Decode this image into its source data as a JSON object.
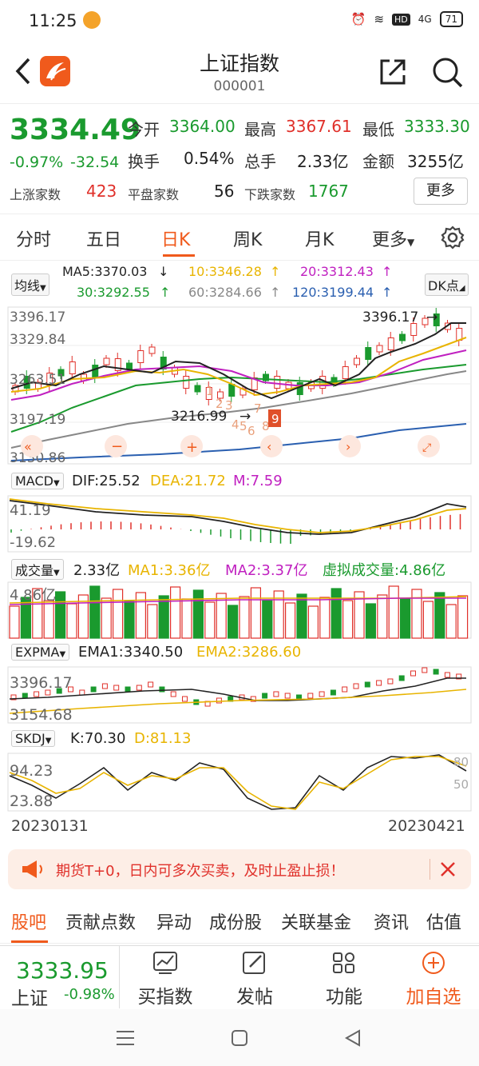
{
  "status": {
    "time": "11:25",
    "battery": "71",
    "net": "4G"
  },
  "header": {
    "title": "上证指数",
    "code": "000001"
  },
  "quote": {
    "price": "3334.49",
    "chg_pct": "-0.97%",
    "chg_amt": "-32.54",
    "open_label": "今开",
    "open": "3364.00",
    "high_label": "最高",
    "high": "3367.61",
    "low_label": "最低",
    "low": "3333.30",
    "turnover_label": "换手",
    "turnover": "0.54%",
    "vol_label": "总手",
    "vol": "2.33亿",
    "amt_label": "金额",
    "amt": "3255亿",
    "up_label": "上涨家数",
    "up": "423",
    "flat_label": "平盘家数",
    "flat": "56",
    "down_label": "下跌家数",
    "down": "1767",
    "more": "更多"
  },
  "tabs": [
    "分时",
    "五日",
    "日K",
    "周K",
    "月K",
    "更多"
  ],
  "ma": {
    "selector": "均线",
    "ma5": "MA5:3370.03",
    "ma10": "10:3346.28",
    "ma20": "20:3312.43",
    "ma30": "30:3292.55",
    "ma60": "60:3284.66",
    "ma120": "120:3199.44",
    "dk": "DK点"
  },
  "kline": {
    "y_top": "3396.17",
    "y2": "3329.84",
    "y3": "3263.51",
    "y4": "3197.19",
    "y_bottom": "3130.86",
    "high_mark": "3396.17",
    "low_mark": "3216.99"
  },
  "macd": {
    "selector": "MACD",
    "dif": "DIF:25.52",
    "dea": "DEA:21.72",
    "m": "M:7.59",
    "y_top": "41.19",
    "y_bottom": "-19.62"
  },
  "volume": {
    "selector": "成交量",
    "vol": "2.33亿",
    "ma1": "MA1:3.36亿",
    "ma2": "MA2:3.37亿",
    "virtual": "虚拟成交量:4.86亿",
    "y_top": "4.86亿"
  },
  "expma": {
    "selector": "EXPMA",
    "ema1": "EMA1:3340.50",
    "ema2": "EMA2:3286.60",
    "y_top": "3396.17",
    "y_bottom": "3154.68"
  },
  "skdj": {
    "selector": "SKDJ",
    "k": "K:70.30",
    "d": "D:81.13",
    "y_top": "94.23",
    "y_bottom": "23.88",
    "r80": "80",
    "r50": "50"
  },
  "dates": {
    "start": "20230131",
    "end": "20230421"
  },
  "banner": {
    "text": "期货T+0，日内可多次买卖，及时止盈止损！"
  },
  "bottom_tabs": [
    "股吧",
    "贡献点数",
    "异动",
    "成份股",
    "关联基金",
    "资讯",
    "估值"
  ],
  "footer": {
    "price": "3333.95",
    "name": "上证",
    "pct": "-0.98%",
    "buy": "买指数",
    "post": "发帖",
    "func": "功能",
    "add": "加自选"
  },
  "colors": {
    "up": "#e0302a",
    "down": "#1a9a2e",
    "accent": "#f05a1c"
  }
}
